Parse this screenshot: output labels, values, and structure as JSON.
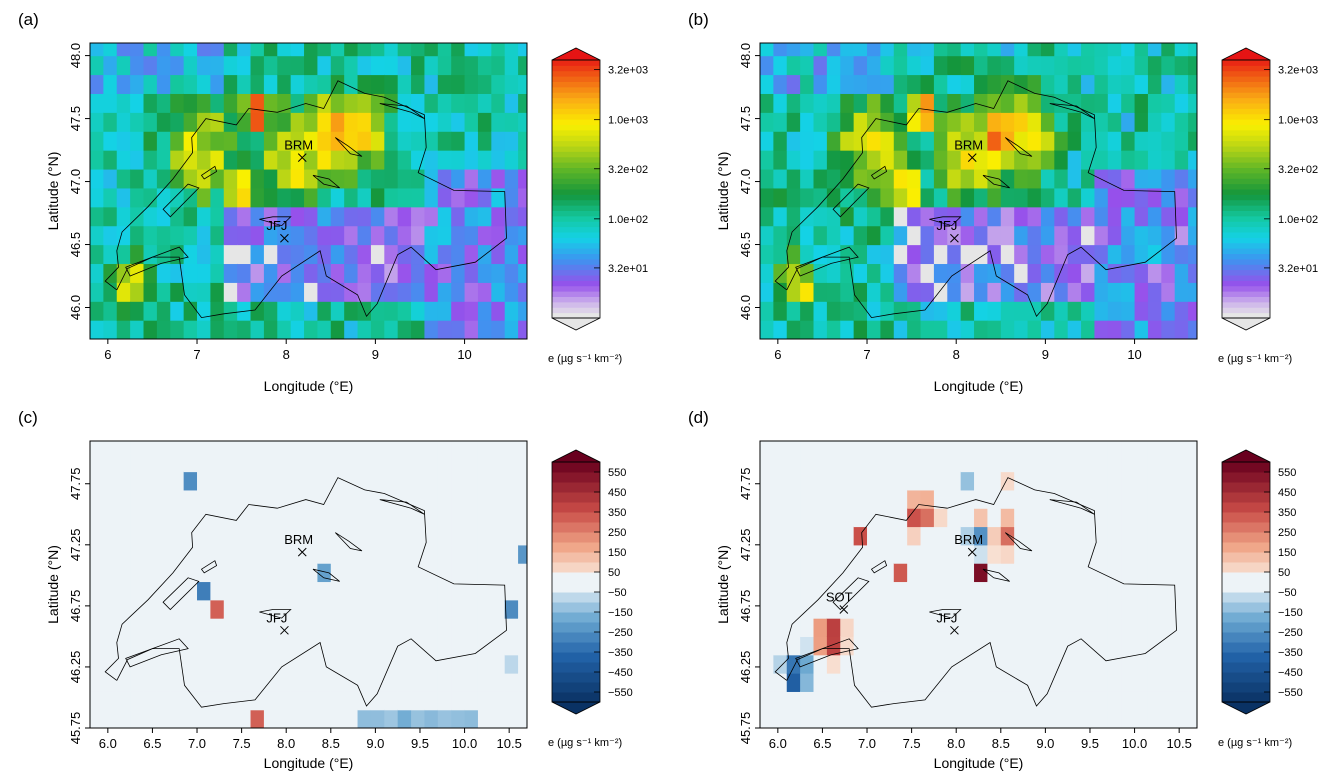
{
  "chart_data": [
    {
      "panel_label": "(a)",
      "type": "heatmap",
      "xlabel": "Longitude (°E)",
      "ylabel": "Latitude (°N)",
      "xlim": [
        5.8,
        10.7
      ],
      "ylim": [
        45.75,
        48.1
      ],
      "x_ticks": [
        6,
        7,
        8,
        9,
        10
      ],
      "y_ticks": [
        46.0,
        46.5,
        47.0,
        47.5,
        48.0
      ],
      "x_tick_labels": [
        "6",
        "7",
        "8",
        "9",
        "10"
      ],
      "y_tick_labels": [
        "46.0",
        "46.5",
        "47.0",
        "47.5",
        "48.0"
      ],
      "colorbar": {
        "scale": "log",
        "range": [
          10,
          4000
        ],
        "tick_values": [
          32,
          100,
          320,
          1000,
          3200
        ],
        "tick_labels": [
          "3.2e+01",
          "1.0e+02",
          "3.2e+02",
          "1.0e+03",
          "3.2e+03"
        ],
        "label": "e (µg s⁻¹ km⁻²)"
      },
      "stations": [
        {
          "name": "BRM",
          "lon": 8.18,
          "lat": 47.19
        },
        {
          "name": "JFJ",
          "lon": 7.98,
          "lat": 46.55
        }
      ]
    },
    {
      "panel_label": "(b)",
      "type": "heatmap",
      "xlabel": "Longitude (°E)",
      "ylabel": "Latitude (°N)",
      "xlim": [
        5.8,
        10.7
      ],
      "ylim": [
        45.75,
        48.1
      ],
      "x_ticks": [
        6,
        7,
        8,
        9,
        10
      ],
      "y_ticks": [
        46.0,
        46.5,
        47.0,
        47.5,
        48.0
      ],
      "x_tick_labels": [
        "6",
        "7",
        "8",
        "9",
        "10"
      ],
      "y_tick_labels": [
        "46.0",
        "46.5",
        "47.0",
        "47.5",
        "48.0"
      ],
      "colorbar": {
        "scale": "log",
        "range": [
          10,
          4000
        ],
        "tick_values": [
          32,
          100,
          320,
          1000,
          3200
        ],
        "tick_labels": [
          "3.2e+01",
          "1.0e+02",
          "3.2e+02",
          "1.0e+03",
          "3.2e+03"
        ],
        "label": "e (µg s⁻¹ km⁻²)"
      },
      "stations": [
        {
          "name": "BRM",
          "lon": 8.18,
          "lat": 47.19
        },
        {
          "name": "JFJ",
          "lon": 7.98,
          "lat": 46.55
        }
      ]
    },
    {
      "panel_label": "(c)",
      "type": "heatmap",
      "xlabel": "Longitude (°E)",
      "ylabel": "Latitude (°N)",
      "xlim": [
        5.8,
        10.7
      ],
      "ylim": [
        45.75,
        48.1
      ],
      "x_ticks": [
        6.0,
        6.5,
        7.0,
        7.5,
        8.0,
        8.5,
        9.0,
        9.5,
        10.0,
        10.5
      ],
      "y_ticks": [
        45.75,
        46.25,
        46.75,
        47.25,
        47.75
      ],
      "x_tick_labels": [
        "6.0",
        "6.5",
        "7.0",
        "7.5",
        "8.0",
        "8.5",
        "9.0",
        "9.5",
        "10.0",
        "10.5"
      ],
      "y_tick_labels": [
        "45.75",
        "46.25",
        "46.75",
        "47.25",
        "47.75"
      ],
      "colorbar": {
        "scale": "linear",
        "range": [
          -600,
          600
        ],
        "tick_values": [
          550,
          450,
          350,
          250,
          150,
          50,
          -50,
          -150,
          -250,
          -350,
          -450,
          -550
        ],
        "tick_labels": [
          "550",
          "450",
          "350",
          "250",
          "150",
          "50",
          "−50",
          "−150",
          "−250",
          "−350",
          "−450",
          "−550"
        ],
        "label": "e (µg s⁻¹ km⁻²)"
      },
      "stations": [
        {
          "name": "BRM",
          "lon": 8.18,
          "lat": 47.19
        },
        {
          "name": "JFJ",
          "lon": 7.98,
          "lat": 46.55
        }
      ]
    },
    {
      "panel_label": "(d)",
      "type": "heatmap",
      "xlabel": "Longitude (°E)",
      "ylabel": "Latitude (°N)",
      "xlim": [
        5.8,
        10.7
      ],
      "ylim": [
        45.75,
        48.1
      ],
      "x_ticks": [
        6.0,
        6.5,
        7.0,
        7.5,
        8.0,
        8.5,
        9.0,
        9.5,
        10.0,
        10.5
      ],
      "y_ticks": [
        45.75,
        46.25,
        46.75,
        47.25,
        47.75
      ],
      "x_tick_labels": [
        "6.0",
        "6.5",
        "7.0",
        "7.5",
        "8.0",
        "8.5",
        "9.0",
        "9.5",
        "10.0",
        "10.5"
      ],
      "y_tick_labels": [
        "45.75",
        "46.25",
        "46.75",
        "47.25",
        "47.75"
      ],
      "colorbar": {
        "scale": "linear",
        "range": [
          -600,
          600
        ],
        "tick_values": [
          550,
          450,
          350,
          250,
          150,
          50,
          -50,
          -150,
          -250,
          -350,
          -450,
          -550
        ],
        "tick_labels": [
          "550",
          "450",
          "350",
          "250",
          "150",
          "50",
          "−50",
          "−150",
          "−250",
          "−350",
          "−450",
          "−550"
        ],
        "label": "e (µg s⁻¹ km⁻²)"
      },
      "stations": [
        {
          "name": "BRM",
          "lon": 8.18,
          "lat": 47.19
        },
        {
          "name": "JFJ",
          "lon": 7.98,
          "lat": 46.55
        },
        {
          "name": "SOT",
          "lon": 6.74,
          "lat": 46.72
        }
      ]
    }
  ],
  "colors": {
    "no_emission": "#e6e6e6",
    "diff_neutral": "#edf3f7",
    "border_line": "#000000"
  }
}
